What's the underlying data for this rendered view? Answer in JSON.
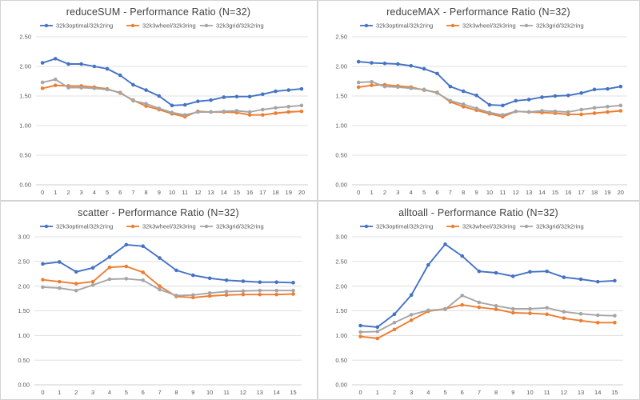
{
  "chart_data": [
    {
      "type": "line",
      "title": "reduceSUM - Performance Ratio (N=32)",
      "xlabel": "",
      "ylabel": "",
      "ylim": [
        0,
        2.5
      ],
      "ystep": 0.5,
      "x": [
        0,
        1,
        2,
        3,
        4,
        5,
        6,
        7,
        8,
        9,
        10,
        11,
        12,
        13,
        14,
        15,
        16,
        17,
        18,
        19,
        20
      ],
      "grid": true,
      "legend": "top",
      "series": [
        {
          "name": "32k3optimal/32k2ring",
          "color": "#4472C4",
          "values": [
            2.06,
            2.13,
            2.04,
            2.04,
            2.0,
            1.96,
            1.85,
            1.69,
            1.6,
            1.5,
            1.34,
            1.35,
            1.41,
            1.43,
            1.48,
            1.49,
            1.49,
            1.53,
            1.58,
            1.6,
            1.62
          ]
        },
        {
          "name": "32k3wheel/32k3ring",
          "color": "#ED7D31",
          "values": [
            1.63,
            1.68,
            1.67,
            1.67,
            1.65,
            1.62,
            1.55,
            1.43,
            1.33,
            1.27,
            1.2,
            1.15,
            1.24,
            1.23,
            1.23,
            1.22,
            1.18,
            1.18,
            1.21,
            1.23,
            1.24
          ]
        },
        {
          "name": "32k3grid/32k2ring",
          "color": "#A5A5A5",
          "values": [
            1.73,
            1.78,
            1.64,
            1.64,
            1.63,
            1.61,
            1.56,
            1.42,
            1.37,
            1.29,
            1.22,
            1.18,
            1.23,
            1.23,
            1.24,
            1.25,
            1.23,
            1.27,
            1.3,
            1.32,
            1.34
          ]
        }
      ]
    },
    {
      "type": "line",
      "title": "reduceMAX - Performance Ratio (N=32)",
      "xlabel": "",
      "ylabel": "",
      "ylim": [
        0,
        2.5
      ],
      "ystep": 0.5,
      "x": [
        0,
        1,
        2,
        3,
        4,
        5,
        6,
        7,
        8,
        9,
        10,
        11,
        12,
        13,
        14,
        15,
        16,
        17,
        18,
        19,
        20
      ],
      "grid": true,
      "legend": "top",
      "series": [
        {
          "name": "32k3optimal/32k2ring",
          "color": "#4472C4",
          "values": [
            2.08,
            2.06,
            2.05,
            2.04,
            2.01,
            1.96,
            1.88,
            1.66,
            1.58,
            1.51,
            1.35,
            1.34,
            1.42,
            1.44,
            1.48,
            1.5,
            1.51,
            1.55,
            1.61,
            1.62,
            1.66
          ]
        },
        {
          "name": "32k3wheel/32k3ring",
          "color": "#ED7D31",
          "values": [
            1.65,
            1.68,
            1.69,
            1.67,
            1.65,
            1.6,
            1.56,
            1.4,
            1.32,
            1.26,
            1.2,
            1.15,
            1.24,
            1.23,
            1.22,
            1.21,
            1.19,
            1.19,
            1.21,
            1.23,
            1.25
          ]
        },
        {
          "name": "32k3grid/32k2ring",
          "color": "#A5A5A5",
          "values": [
            1.73,
            1.74,
            1.66,
            1.65,
            1.63,
            1.61,
            1.55,
            1.42,
            1.36,
            1.29,
            1.22,
            1.18,
            1.24,
            1.23,
            1.25,
            1.24,
            1.23,
            1.27,
            1.3,
            1.32,
            1.34
          ]
        }
      ]
    },
    {
      "type": "line",
      "title": "scatter - Performance Ratio (N=32)",
      "xlabel": "",
      "ylabel": "",
      "ylim": [
        0,
        3.0
      ],
      "ystep": 0.5,
      "x": [
        0,
        1,
        2,
        3,
        4,
        5,
        6,
        7,
        8,
        9,
        10,
        11,
        12,
        13,
        14,
        15
      ],
      "grid": true,
      "legend": "top",
      "series": [
        {
          "name": "32k3optimal/32k2ring",
          "color": "#4472C4",
          "values": [
            2.45,
            2.49,
            2.29,
            2.37,
            2.59,
            2.84,
            2.81,
            2.57,
            2.32,
            2.22,
            2.16,
            2.12,
            2.1,
            2.08,
            2.08,
            2.07
          ]
        },
        {
          "name": "32k3wheel/32k3ring",
          "color": "#ED7D31",
          "values": [
            2.13,
            2.09,
            2.05,
            2.09,
            2.38,
            2.4,
            2.28,
            2.0,
            1.79,
            1.77,
            1.8,
            1.82,
            1.83,
            1.83,
            1.83,
            1.84
          ]
        },
        {
          "name": "32k3grid/32k2ring",
          "color": "#A5A5A5",
          "values": [
            1.98,
            1.96,
            1.91,
            2.02,
            2.14,
            2.15,
            2.12,
            1.93,
            1.81,
            1.82,
            1.86,
            1.89,
            1.9,
            1.91,
            1.91,
            1.91
          ]
        }
      ]
    },
    {
      "type": "line",
      "title": "alltoall - Performance Ratio (N=32)",
      "xlabel": "",
      "ylabel": "",
      "ylim": [
        0,
        3.0
      ],
      "ystep": 0.5,
      "x": [
        0,
        1,
        2,
        3,
        4,
        5,
        6,
        7,
        8,
        9,
        10,
        11,
        12,
        13,
        14,
        15
      ],
      "grid": true,
      "legend": "top",
      "series": [
        {
          "name": "32k3optimal/32k2ring",
          "color": "#4472C4",
          "values": [
            1.2,
            1.17,
            1.43,
            1.82,
            2.43,
            2.85,
            2.61,
            2.3,
            2.27,
            2.2,
            2.29,
            2.3,
            2.18,
            2.14,
            2.09,
            2.11
          ]
        },
        {
          "name": "32k3wheel/32k3ring",
          "color": "#ED7D31",
          "values": [
            0.98,
            0.94,
            1.12,
            1.31,
            1.49,
            1.54,
            1.62,
            1.57,
            1.53,
            1.46,
            1.45,
            1.43,
            1.35,
            1.3,
            1.26,
            1.26
          ]
        },
        {
          "name": "32k3grid/32k2ring",
          "color": "#A5A5A5",
          "values": [
            1.07,
            1.08,
            1.26,
            1.42,
            1.51,
            1.53,
            1.81,
            1.67,
            1.6,
            1.54,
            1.54,
            1.56,
            1.48,
            1.44,
            1.41,
            1.4
          ]
        }
      ]
    }
  ]
}
